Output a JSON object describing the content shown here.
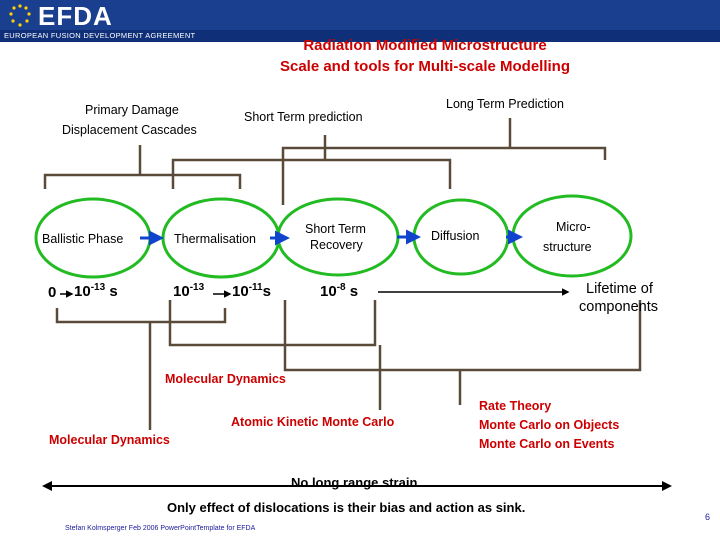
{
  "header": {
    "logo_text": "EFDA",
    "logo_subtitle": "EUROPEAN FUSION DEVELOPMENT AGREEMENT",
    "band_color": "#1a3f8f"
  },
  "title": {
    "line1": "Radiation Modified Microstructure",
    "line2": "Scale and tools for Multi-scale Modelling",
    "color": "#cc0000"
  },
  "brackets": {
    "primary_damage_line1": "Primary Damage",
    "primary_damage_line2": "Displacement Cascades",
    "short_term_prediction": "Short Term prediction",
    "long_term_prediction": "Long Term Prediction"
  },
  "stages": {
    "ballistic": "Ballistic Phase",
    "thermalisation": "Thermalisation",
    "short_term_recovery_line1": "Short Term",
    "short_term_recovery_line2": "Recovery",
    "diffusion": "Diffusion",
    "microstructure_line1": "Micro-",
    "microstructure_line2": "structure"
  },
  "timescale": {
    "t0": "0",
    "t1_base": "10",
    "t1_exp": "-13",
    "t1_unit": "s",
    "t2_base": "10",
    "t2_exp": "-13",
    "t3_base": "10",
    "t3_exp": "-11",
    "t3_unit": "s",
    "t4_base": "10",
    "t4_exp": "-8",
    "t4_unit": "s",
    "lifetime_line1": "Lifetime of",
    "lifetime_line2": "components"
  },
  "methods": {
    "md_upper": "Molecular Dynamics",
    "md_lower": "Molecular Dynamics",
    "akmc": "Atomic Kinetic Monte Carlo",
    "rate_theory": "Rate Theory",
    "mc_objects": "Monte Carlo on Objects",
    "mc_events": "Monte Carlo on Events"
  },
  "notes": {
    "no_long_range_strain": "No long range strain",
    "dislocations": "Only effect of dislocations is their bias and action as sink."
  },
  "footer": {
    "author": "Stefan Kolmsperger Feb 2006 PowerPointTemplate for EFDA",
    "page_number": "6"
  },
  "colors": {
    "circle_green": "#22bb22",
    "arrow_blue": "#1144cc",
    "bracket_brown": "#5a4a3a"
  }
}
